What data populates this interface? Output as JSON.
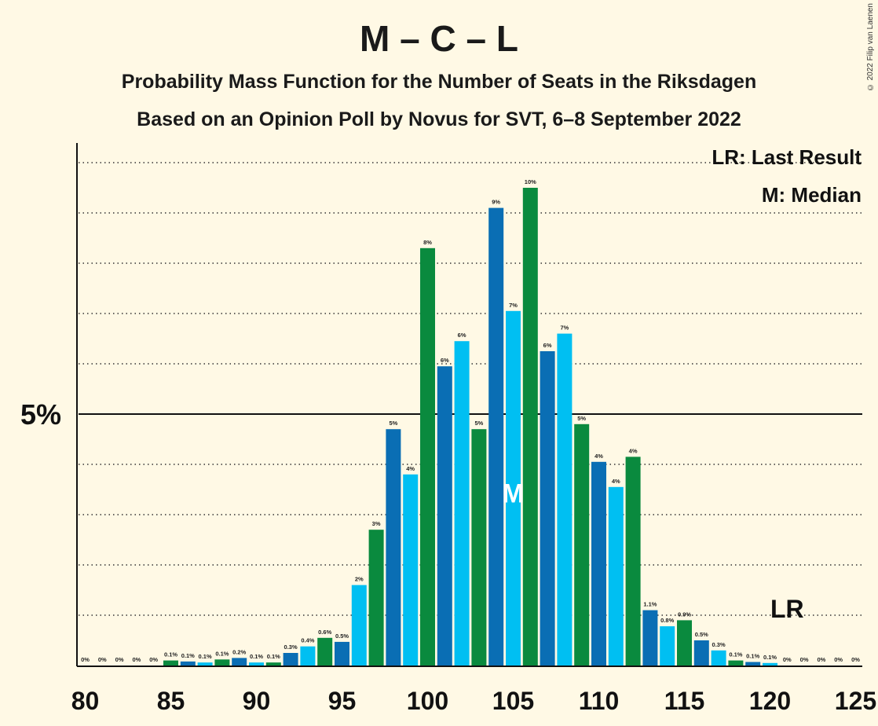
{
  "title": "M – C – L",
  "subtitle_1": "Probability Mass Function for the Number of Seats in the Riksdagen",
  "subtitle_2": "Based on an Opinion Poll by Novus for SVT, 6–8 September 2022",
  "copyright": "© 2022 Filip van Laenen",
  "colors": {
    "background": "#FFF9E5",
    "blue": "#0A6EB4",
    "cyan": "#00BFF2",
    "green": "#0A8A3E"
  },
  "chart_data": {
    "type": "bar",
    "x": [
      80,
      81,
      82,
      83,
      84,
      85,
      86,
      87,
      88,
      89,
      90,
      91,
      92,
      93,
      94,
      95,
      96,
      97,
      98,
      99,
      100,
      101,
      102,
      103,
      104,
      105,
      106,
      107,
      108,
      109,
      110,
      111,
      112,
      113,
      114,
      115,
      116,
      117,
      118,
      119,
      120,
      121,
      122,
      123,
      124,
      125
    ],
    "values": [
      0,
      0,
      0,
      0,
      0,
      0.1,
      0.1,
      0.1,
      0.1,
      0.2,
      0.1,
      0.1,
      0.3,
      0.4,
      0.6,
      0.5,
      2,
      3,
      5,
      4,
      8,
      6,
      6,
      5,
      9,
      7,
      10,
      6,
      7,
      5,
      4,
      4,
      4,
      1.1,
      0.8,
      0.9,
      0.5,
      0.3,
      0.1,
      0.1,
      0.1,
      0,
      0,
      0,
      0,
      0
    ],
    "value_labels": [
      "0%",
      "0%",
      "0%",
      "0%",
      "0%",
      "0.1%",
      "0.1%",
      "0.1%",
      "0.1%",
      "0.2%",
      "0.1%",
      "0.1%",
      "0.3%",
      "0.4%",
      "0.6%",
      "0.5%",
      "2%",
      "3%",
      "5%",
      "4%",
      "8%",
      "6%",
      "6%",
      "5%",
      "9%",
      "7%",
      "10%",
      "6%",
      "7%",
      "5%",
      "4%",
      "4%",
      "4%",
      "1.1%",
      "0.8%",
      "0.9%",
      "0.5%",
      "0.3%",
      "0.1%",
      "0.1%",
      "0.1%",
      "0%",
      "0%",
      "0%",
      "0%",
      "0%"
    ],
    "heights_pct": [
      0,
      0,
      0,
      0,
      0,
      0.1,
      0.08,
      0.06,
      0.12,
      0.15,
      0.06,
      0.06,
      0.25,
      0.38,
      0.55,
      0.47,
      1.6,
      2.7,
      4.7,
      3.8,
      8.3,
      5.95,
      6.45,
      4.7,
      9.1,
      7.05,
      9.5,
      6.25,
      6.6,
      4.8,
      4.05,
      3.55,
      4.15,
      1.1,
      0.78,
      0.9,
      0.5,
      0.3,
      0.1,
      0.07,
      0.05,
      0,
      0,
      0,
      0,
      0
    ],
    "bar_colors": [
      "#0A8A3E",
      "#0A6EB4",
      "#00BFF2",
      "#0A8A3E",
      "#0A6EB4",
      "#0A8A3E",
      "#0A6EB4",
      "#00BFF2",
      "#0A8A3E",
      "#0A6EB4",
      "#00BFF2",
      "#0A8A3E",
      "#0A6EB4",
      "#00BFF2",
      "#0A8A3E",
      "#0A6EB4",
      "#00BFF2",
      "#0A8A3E",
      "#0A6EB4",
      "#00BFF2",
      "#0A8A3E",
      "#0A6EB4",
      "#00BFF2",
      "#0A8A3E",
      "#0A6EB4",
      "#00BFF2",
      "#0A8A3E",
      "#0A6EB4",
      "#00BFF2",
      "#0A8A3E",
      "#0A6EB4",
      "#00BFF2",
      "#0A8A3E",
      "#0A6EB4",
      "#00BFF2",
      "#0A8A3E",
      "#0A6EB4",
      "#00BFF2",
      "#0A8A3E",
      "#0A6EB4",
      "#00BFF2",
      "#0A8A3E",
      "#0A6EB4",
      "#00BFF2",
      "#0A8A3E",
      "#0A6EB4"
    ],
    "xlim": [
      80,
      125
    ],
    "ylim": [
      0,
      10.3
    ],
    "x_ticks": [
      80,
      85,
      90,
      95,
      100,
      105,
      110,
      115,
      120,
      125
    ],
    "y_tick": {
      "value": 5,
      "label": "5%"
    },
    "grid_dotted_every": 1,
    "median": {
      "x": 105,
      "label": "M"
    },
    "last_result": {
      "x": 121,
      "label": "LR"
    },
    "legend": [
      "LR: Last Result",
      "M: Median"
    ],
    "legend_position": "top-right"
  }
}
